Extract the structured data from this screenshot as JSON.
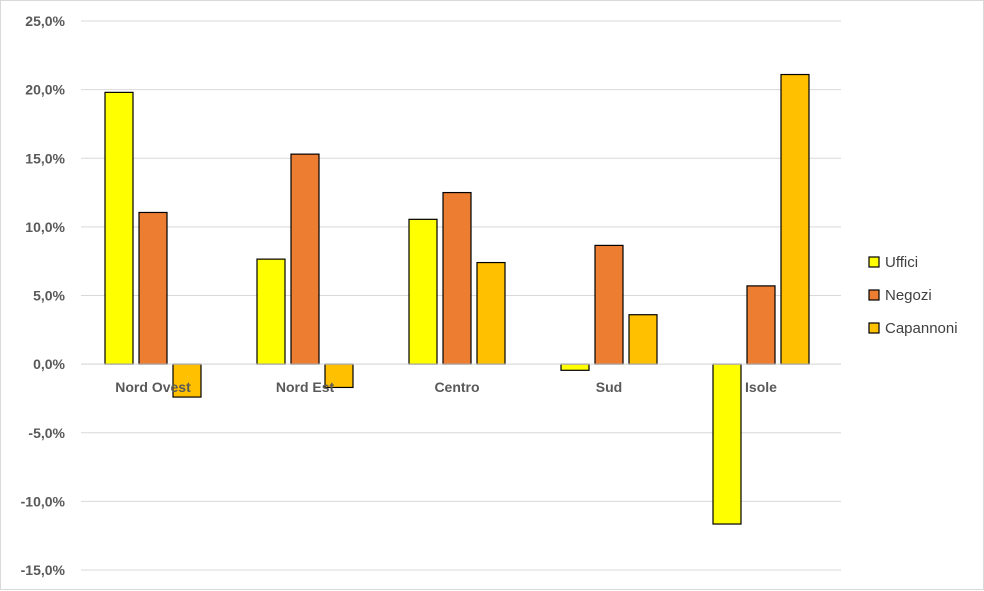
{
  "chart_data": {
    "type": "bar",
    "title": "",
    "xlabel": "",
    "ylabel": "",
    "categories": [
      "Nord Ovest",
      "Nord Est",
      "Centro",
      "Sud",
      "Isole"
    ],
    "series": [
      {
        "name": "Uffici",
        "color": "#FFFF00",
        "values": [
          19.8,
          7.65,
          10.55,
          -0.45,
          -11.65
        ]
      },
      {
        "name": "Negozi",
        "color": "#ED7D31",
        "values": [
          11.05,
          15.3,
          12.5,
          8.65,
          5.7
        ]
      },
      {
        "name": "Capannoni",
        "color": "#FFC000",
        "values": [
          -2.4,
          -1.7,
          7.4,
          3.6,
          21.1
        ]
      }
    ],
    "ylim": [
      -15,
      25
    ],
    "yticks": [
      -15,
      -10,
      -5,
      0,
      5,
      10,
      15,
      20,
      25
    ],
    "ytick_labels": [
      "-15,0%",
      "-10,0%",
      "-5,0%",
      "0,0%",
      "5,0%",
      "10,0%",
      "15,0%",
      "20,0%",
      "25,0%"
    ],
    "grid": true,
    "legend_position": "right"
  }
}
